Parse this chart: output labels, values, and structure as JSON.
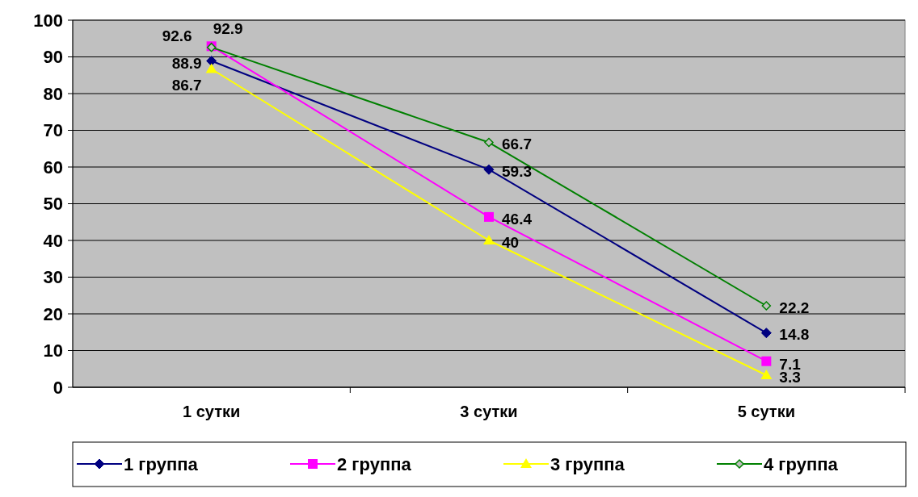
{
  "chart_data": {
    "type": "line",
    "categories": [
      "1 сутки",
      "3 сутки",
      "5 сутки"
    ],
    "series": [
      {
        "name": "1 группа",
        "color": "#000080",
        "marker": "diamond",
        "values": [
          88.9,
          59.3,
          14.8
        ]
      },
      {
        "name": "2 группа",
        "color": "#ff00ff",
        "marker": "square",
        "values": [
          92.9,
          46.4,
          7.1
        ]
      },
      {
        "name": "3 группа",
        "color": "#ffff00",
        "marker": "triangle",
        "values": [
          86.7,
          40,
          3.3
        ]
      },
      {
        "name": "4 группа",
        "color": "#008000",
        "marker": "diamond-open",
        "values": [
          92.6,
          66.7,
          22.2
        ]
      }
    ],
    "ylim": [
      0,
      100
    ],
    "yticks": [
      0,
      10,
      20,
      30,
      40,
      50,
      60,
      70,
      80,
      90,
      100
    ],
    "grid": "y",
    "legend": "bottom",
    "data_labels": true
  }
}
